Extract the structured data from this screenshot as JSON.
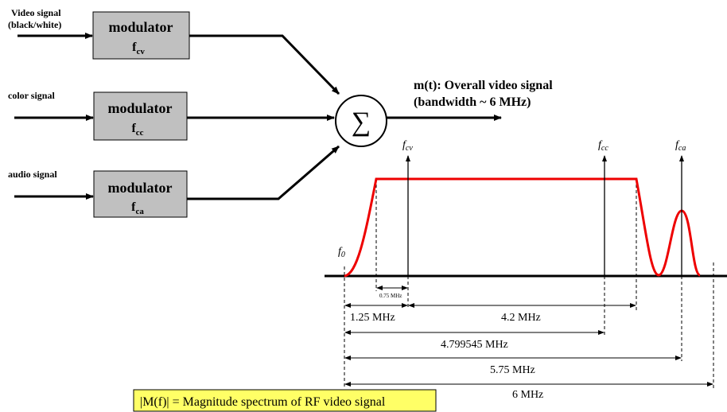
{
  "inputs": [
    {
      "label_lines": [
        "Video signal",
        "(black/white)"
      ]
    },
    {
      "label_lines": [
        "color signal"
      ]
    },
    {
      "label_lines": [
        "audio signal"
      ]
    }
  ],
  "modulators": [
    {
      "title": "modulator",
      "symbol": "f",
      "subscript": "cv"
    },
    {
      "title": "modulator",
      "symbol": "f",
      "subscript": "cc"
    },
    {
      "title": "modulator",
      "symbol": "f",
      "subscript": "ca"
    }
  ],
  "summer": {
    "symbol": "∑"
  },
  "output": {
    "label_lines": [
      "m(t): Overall video signal",
      "(bandwidth ~ 6 MHz)"
    ]
  },
  "spectrum": {
    "carriers": [
      {
        "symbol": "f",
        "subscript": "cv"
      },
      {
        "symbol": "f",
        "subscript": "cc"
      },
      {
        "symbol": "f",
        "subscript": "ca"
      }
    ],
    "origin": {
      "symbol": "f",
      "subscript": "0"
    },
    "dimensions": [
      "0.75 MHz",
      "1.25 MHz",
      "4.2 MHz",
      "4.799545 MHz",
      "5.75 MHz",
      "6 MHz"
    ],
    "caption": "|M(f)| = Magnitude spectrum of RF video signal"
  }
}
